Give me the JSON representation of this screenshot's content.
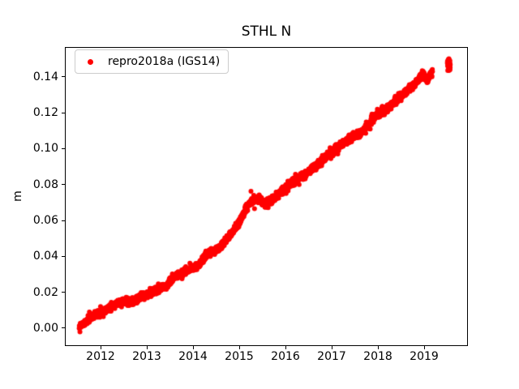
{
  "figure": {
    "kind": "matplotlib-timeseries-figure",
    "background": "#ffffff"
  },
  "chart_data": {
    "type": "scatter",
    "title": "STHL N",
    "xlabel": "",
    "ylabel": "m",
    "legend": {
      "position": "upper left",
      "entries": [
        {
          "label": "repro2018a (IGS14)",
          "marker": "red-dot",
          "color": "#ff0000"
        }
      ]
    },
    "grid": false,
    "x_tick_labels": [
      "2012",
      "2013",
      "2014",
      "2015",
      "2016",
      "2017",
      "2018",
      "2019"
    ],
    "y_tick_labels": [
      "0.00",
      "0.02",
      "0.04",
      "0.06",
      "0.08",
      "0.10",
      "0.12",
      "0.14"
    ],
    "xlim": [
      2011.22,
      2019.92
    ],
    "ylim": [
      -0.0095,
      0.15665
    ],
    "marker": {
      "color": "#ff0000",
      "radius_px": 3
    },
    "series": [
      {
        "name": "repro2018a (IGS14)",
        "description": "Dense near-daily GPS north-displacement solutions forming a nearly linear band from ~0.000 m in mid-2011 to ~0.143 m in early 2019, plus a small detached cluster mid-2019.",
        "span_years": [
          2011.53,
          2019.19
        ],
        "rate_m_per_year": 0.0187,
        "trend_anchors": [
          [
            2011.53,
            0.0005
          ],
          [
            2011.8,
            0.0058
          ],
          [
            2012.1,
            0.0095
          ],
          [
            2012.38,
            0.0135
          ],
          [
            2012.52,
            0.0148
          ],
          [
            2012.68,
            0.0142
          ],
          [
            2012.96,
            0.018
          ],
          [
            2013.26,
            0.0212
          ],
          [
            2013.45,
            0.024
          ],
          [
            2013.56,
            0.0277
          ],
          [
            2013.85,
            0.0315
          ],
          [
            2014.14,
            0.0352
          ],
          [
            2014.33,
            0.042
          ],
          [
            2014.55,
            0.044
          ],
          [
            2014.72,
            0.049
          ],
          [
            2015.0,
            0.058
          ],
          [
            2015.12,
            0.065
          ],
          [
            2015.25,
            0.0705
          ],
          [
            2015.4,
            0.072
          ],
          [
            2015.55,
            0.069
          ],
          [
            2015.7,
            0.071
          ],
          [
            2015.9,
            0.0755
          ],
          [
            2016.18,
            0.082
          ],
          [
            2016.47,
            0.086
          ],
          [
            2016.76,
            0.0925
          ],
          [
            2017.06,
            0.0992
          ],
          [
            2017.35,
            0.1045
          ],
          [
            2017.64,
            0.109
          ],
          [
            2017.8,
            0.1135
          ],
          [
            2017.95,
            0.118
          ],
          [
            2018.23,
            0.1228
          ],
          [
            2018.52,
            0.1295
          ],
          [
            2018.81,
            0.136
          ],
          [
            2018.97,
            0.142
          ],
          [
            2019.08,
            0.1375
          ],
          [
            2019.19,
            0.1435
          ]
        ],
        "outliers": [
          [
            2015.33,
            0.0663
          ]
        ],
        "detached_cluster": {
          "span_years": [
            2019.505,
            2019.575
          ],
          "value_range_m": [
            0.1435,
            0.1505
          ],
          "center_m": 0.147,
          "n_points": 42
        }
      }
    ]
  }
}
